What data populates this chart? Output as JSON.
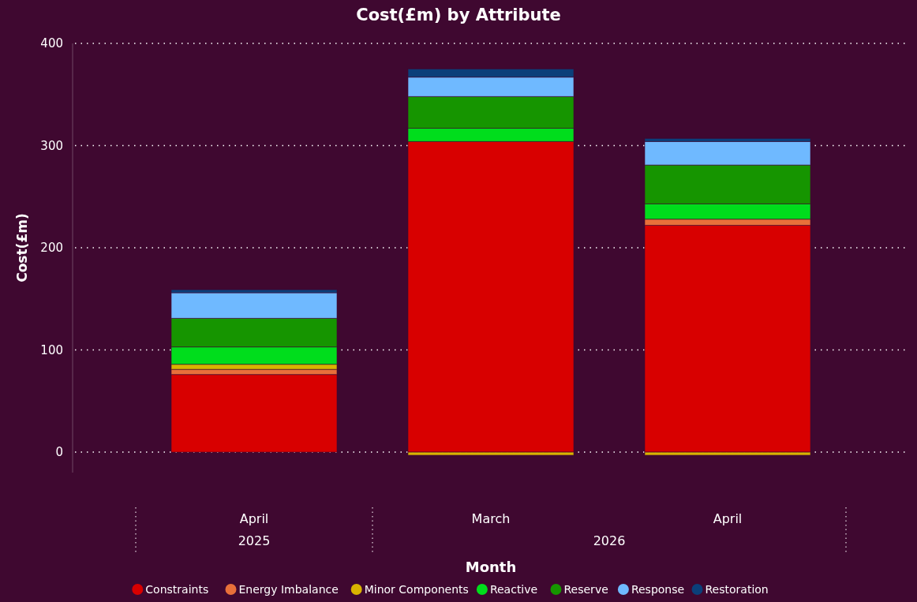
{
  "chart_data": {
    "type": "bar",
    "title": "Cost(£m) by Attribute",
    "xlabel": "Month",
    "ylabel": "Cost(£m)",
    "categories": [
      "April",
      "March",
      "April"
    ],
    "annotations": [
      "2025",
      "2026"
    ],
    "stacked": true,
    "ylim": [
      -20,
      400
    ],
    "yticks": [
      0,
      100,
      200,
      300,
      400
    ],
    "grid": "y",
    "legend": "bottom",
    "series": [
      {
        "name": "Constraints",
        "color": "#d80000",
        "values": [
          76,
          304,
          222
        ]
      },
      {
        "name": "Energy Imbalance",
        "color": "#e8703a",
        "values": [
          5,
          0,
          6
        ]
      },
      {
        "name": "Minor Components",
        "color": "#d9b300",
        "values": [
          5,
          -3,
          -3
        ]
      },
      {
        "name": "Reactive",
        "color": "#00dd1c",
        "values": [
          17,
          13,
          15
        ]
      },
      {
        "name": "Reserve",
        "color": "#169500",
        "values": [
          28,
          31,
          38
        ]
      },
      {
        "name": "Response",
        "color": "#6fb9ff",
        "values": [
          25,
          19,
          23
        ]
      },
      {
        "name": "Restoration",
        "color": "#0b3f7a",
        "values": [
          3,
          8,
          3
        ]
      }
    ]
  }
}
